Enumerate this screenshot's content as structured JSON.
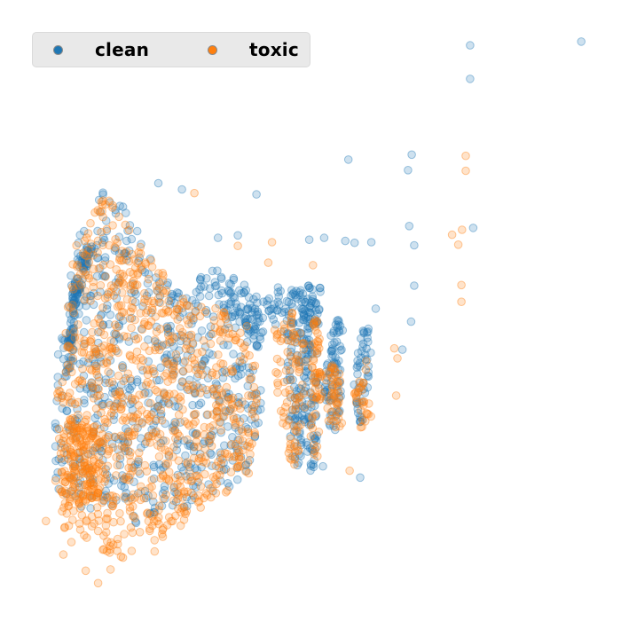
{
  "chart_data": {
    "type": "scatter",
    "title": "",
    "xlabel": "",
    "ylabel": "",
    "axes_visible": false,
    "grid": false,
    "legend_position": "top-left",
    "xlim": [
      0,
      1
    ],
    "ylim": [
      0,
      1
    ],
    "marker_alpha": 0.22,
    "series": [
      {
        "name": "clean",
        "color": "#1f77b4",
        "points": [
          [
            0.936,
            0.933
          ],
          [
            0.757,
            0.927
          ],
          [
            0.757,
            0.873
          ],
          [
            0.663,
            0.751
          ],
          [
            0.561,
            0.743
          ],
          [
            0.657,
            0.726
          ],
          [
            0.413,
            0.687
          ],
          [
            0.293,
            0.695
          ],
          [
            0.255,
            0.705
          ],
          [
            0.762,
            0.633
          ],
          [
            0.659,
            0.636
          ],
          [
            0.667,
            0.605
          ],
          [
            0.598,
            0.61
          ],
          [
            0.571,
            0.609
          ],
          [
            0.667,
            0.54
          ],
          [
            0.662,
            0.482
          ],
          [
            0.648,
            0.437
          ],
          [
            0.605,
            0.503
          ],
          [
            0.556,
            0.612
          ],
          [
            0.522,
            0.617
          ],
          [
            0.498,
            0.614
          ],
          [
            0.383,
            0.621
          ],
          [
            0.351,
            0.617
          ],
          [
            0.09,
            0.258
          ],
          [
            0.58,
            0.231
          ],
          [
            0.52,
            0.249
          ]
        ],
        "density_regions": [
          {
            "polygon": [
              [
                0.122,
                0.612
              ],
              [
                0.175,
                0.724
              ],
              [
                0.232,
                0.606
              ],
              [
                0.296,
                0.525
              ],
              [
                0.355,
                0.508
              ],
              [
                0.412,
                0.484
              ],
              [
                0.423,
                0.362
              ],
              [
                0.404,
                0.232
              ],
              [
                0.3,
                0.184
              ],
              [
                0.18,
                0.142
              ],
              [
                0.088,
                0.205
              ],
              [
                0.085,
                0.25
              ],
              [
                0.092,
                0.42
              ]
            ],
            "count": 620
          },
          {
            "polygon": [
              [
                0.104,
                0.388
              ],
              [
                0.118,
                0.538
              ],
              [
                0.14,
                0.608
              ],
              [
                0.152,
                0.6
              ],
              [
                0.124,
                0.52
              ],
              [
                0.112,
                0.4
              ]
            ],
            "count": 120
          },
          {
            "polygon": [
              [
                0.308,
                0.562
              ],
              [
                0.352,
                0.568
              ],
              [
                0.386,
                0.55
              ],
              [
                0.414,
                0.522
              ],
              [
                0.426,
                0.47
              ],
              [
                0.42,
                0.43
              ],
              [
                0.392,
                0.47
              ],
              [
                0.352,
                0.508
              ],
              [
                0.318,
                0.52
              ]
            ],
            "count": 100
          },
          {
            "polygon": [
              [
                0.42,
                0.52
              ],
              [
                0.458,
                0.545
              ],
              [
                0.52,
                0.54
              ],
              [
                0.515,
                0.47
              ],
              [
                0.47,
                0.46
              ],
              [
                0.425,
                0.47
              ]
            ],
            "count": 70
          },
          {
            "polygon": [
              [
                0.468,
                0.53
              ],
              [
                0.482,
                0.55
              ],
              [
                0.498,
                0.52
              ],
              [
                0.496,
                0.32
              ],
              [
                0.478,
                0.23
              ],
              [
                0.464,
                0.3
              ],
              [
                0.46,
                0.44
              ]
            ],
            "count": 110
          },
          {
            "polygon": [
              [
                0.5,
                0.54
              ],
              [
                0.514,
                0.51
              ],
              [
                0.512,
                0.28
              ],
              [
                0.5,
                0.222
              ],
              [
                0.49,
                0.3
              ],
              [
                0.492,
                0.46
              ]
            ],
            "count": 70
          },
          {
            "polygon": [
              [
                0.528,
                0.44
              ],
              [
                0.54,
                0.5
              ],
              [
                0.552,
                0.47
              ],
              [
                0.548,
                0.32
              ],
              [
                0.53,
                0.29
              ],
              [
                0.52,
                0.36
              ]
            ],
            "count": 80
          },
          {
            "polygon": [
              [
                0.574,
                0.42
              ],
              [
                0.586,
                0.48
              ],
              [
                0.6,
                0.47
              ],
              [
                0.592,
                0.35
              ],
              [
                0.578,
                0.3
              ],
              [
                0.568,
                0.36
              ]
            ],
            "count": 50
          }
        ]
      },
      {
        "name": "toxic",
        "color": "#ff7f0e",
        "points": [
          [
            0.75,
            0.749
          ],
          [
            0.75,
            0.725
          ],
          [
            0.313,
            0.689
          ],
          [
            0.744,
            0.63
          ],
          [
            0.738,
            0.606
          ],
          [
            0.728,
            0.622
          ],
          [
            0.743,
            0.541
          ],
          [
            0.743,
            0.514
          ],
          [
            0.635,
            0.439
          ],
          [
            0.64,
            0.423
          ],
          [
            0.638,
            0.363
          ],
          [
            0.438,
            0.61
          ],
          [
            0.504,
            0.573
          ],
          [
            0.432,
            0.577
          ],
          [
            0.383,
            0.604
          ],
          [
            0.563,
            0.242
          ],
          [
            0.074,
            0.161
          ],
          [
            0.115,
            0.127
          ],
          [
            0.198,
            0.102
          ],
          [
            0.249,
            0.112
          ],
          [
            0.178,
            0.083
          ],
          [
            0.158,
            0.061
          ],
          [
            0.138,
            0.081
          ],
          [
            0.102,
            0.107
          ]
        ],
        "density_regions": [
          {
            "polygon": [
              [
                0.122,
                0.612
              ],
              [
                0.172,
                0.69
              ],
              [
                0.23,
                0.598
              ],
              [
                0.296,
                0.52
              ],
              [
                0.352,
                0.504
              ],
              [
                0.4,
                0.48
              ],
              [
                0.418,
                0.372
              ],
              [
                0.404,
                0.24
              ],
              [
                0.3,
                0.155
              ],
              [
                0.19,
                0.098
              ],
              [
                0.094,
                0.148
              ],
              [
                0.082,
                0.24
              ],
              [
                0.098,
                0.43
              ]
            ],
            "count": 900
          },
          {
            "polygon": [
              [
                0.104,
                0.18
              ],
              [
                0.094,
                0.23
              ],
              [
                0.102,
                0.33
              ],
              [
                0.17,
                0.3
              ],
              [
                0.16,
                0.2
              ]
            ],
            "count": 150
          },
          {
            "polygon": [
              [
                0.44,
                0.47
              ],
              [
                0.47,
                0.5
              ],
              [
                0.494,
                0.44
              ],
              [
                0.49,
                0.28
              ],
              [
                0.47,
                0.24
              ],
              [
                0.448,
                0.32
              ]
            ],
            "count": 90
          },
          {
            "polygon": [
              [
                0.5,
                0.48
              ],
              [
                0.512,
                0.5
              ],
              [
                0.52,
                0.38
              ],
              [
                0.51,
                0.25
              ],
              [
                0.498,
                0.3
              ]
            ],
            "count": 60
          },
          {
            "polygon": [
              [
                0.524,
                0.4
              ],
              [
                0.546,
                0.43
              ],
              [
                0.552,
                0.32
              ],
              [
                0.53,
                0.29
              ]
            ],
            "count": 45
          },
          {
            "polygon": [
              [
                0.57,
                0.38
              ],
              [
                0.59,
                0.42
              ],
              [
                0.598,
                0.33
              ],
              [
                0.574,
                0.3
              ]
            ],
            "count": 30
          }
        ]
      }
    ]
  }
}
